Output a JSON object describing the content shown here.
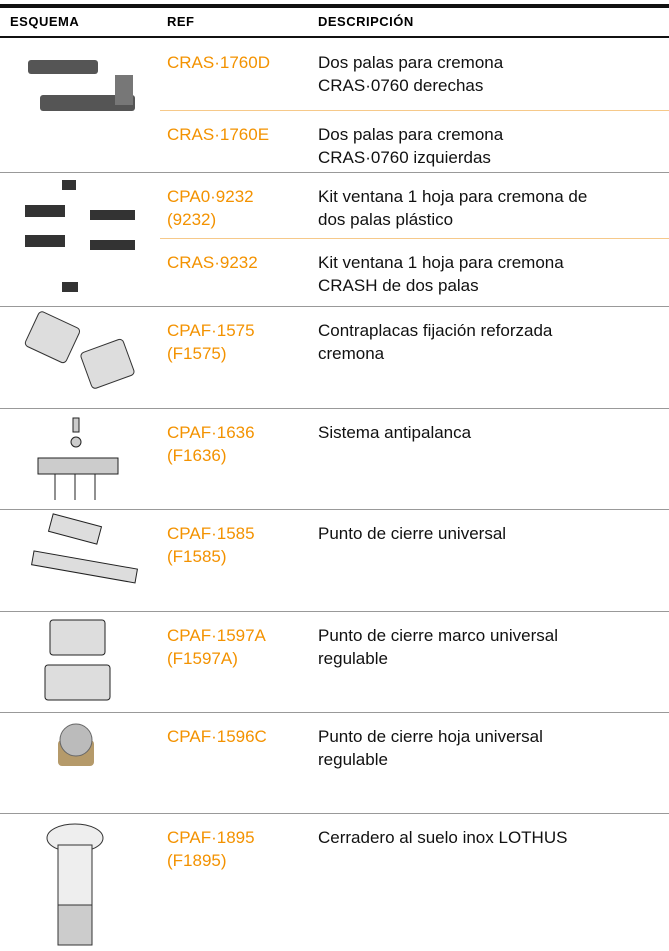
{
  "table": {
    "header": [
      "ESQUEMA",
      "REF",
      "DESCRIPCIÓN"
    ],
    "groups": [
      {
        "rows": [
          {
            "ref": "CRAS·1760D",
            "description": "Dos palas para cremona\nCRAS·0760 derechas"
          },
          {
            "ref": "CRAS·1760E",
            "description": "Dos palas para cremona\nCRAS·0760 izquierdas"
          }
        ]
      },
      {
        "rows": [
          {
            "ref": "CPA0·9232\n(9232)",
            "description": "Kit ventana 1 hoja para cremona de\ndos palas plástico"
          },
          {
            "ref": "CRAS·9232",
            "description": "Kit ventana 1 hoja para cremona\nCRASH de dos palas"
          }
        ]
      },
      {
        "rows": [
          {
            "ref": "CPAF·1575\n(F1575)",
            "description": "Contraplacas fijación reforzada\ncremona"
          }
        ]
      },
      {
        "rows": [
          {
            "ref": "CPAF·1636\n(F1636)",
            "description": "Sistema antipalanca"
          }
        ]
      },
      {
        "rows": [
          {
            "ref": "CPAF·1585\n(F1585)",
            "description": "Punto de cierre universal"
          }
        ]
      },
      {
        "rows": [
          {
            "ref": "CPAF·1597A\n(F1597A)",
            "description": "Punto de cierre marco universal\nregulable"
          }
        ]
      },
      {
        "rows": [
          {
            "ref": "CPAF·1596C",
            "description": "Punto de cierre hoja universal\nregulable"
          }
        ]
      },
      {
        "rows": [
          {
            "ref": "CPAF·1895\n(F1895)",
            "description": "Cerradero al suelo inox LOTHUS"
          }
        ]
      }
    ]
  }
}
